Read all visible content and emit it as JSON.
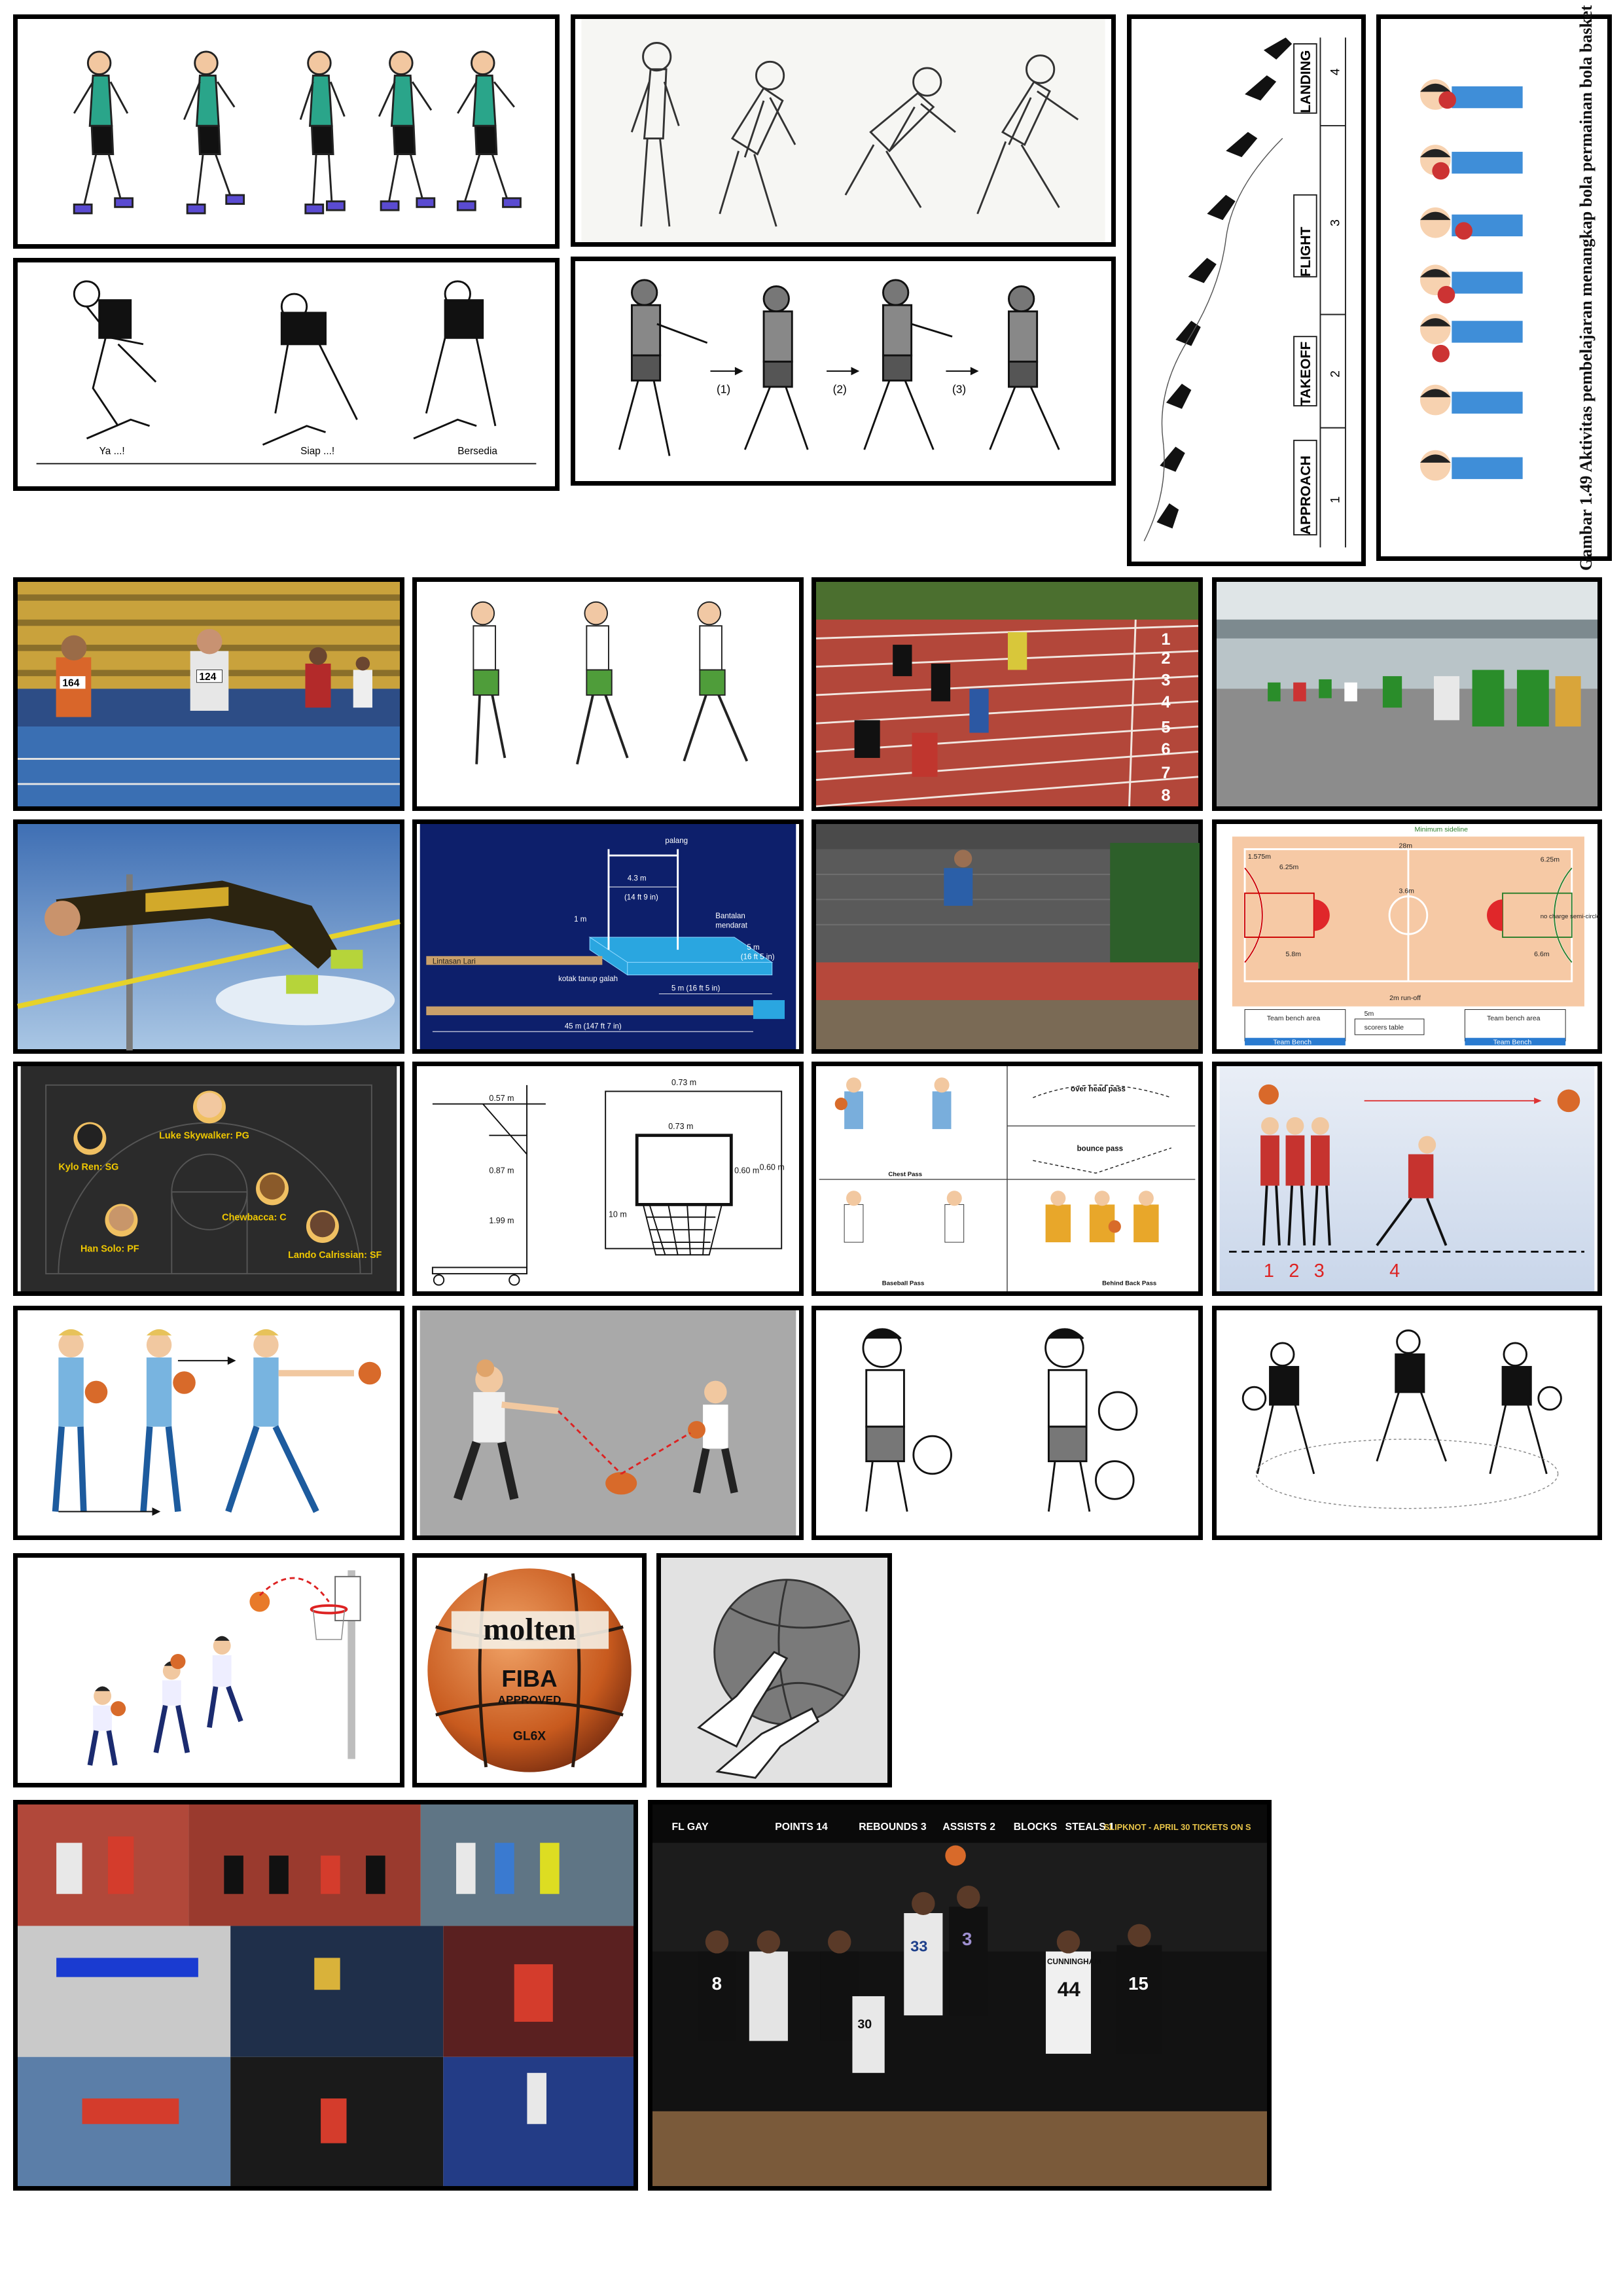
{
  "row1": {
    "jump_phases": {
      "approach": "APPROACH",
      "approach_num": "1",
      "takeoff": "TAKEOFF",
      "takeoff_num": "2",
      "flight": "FLIGHT",
      "flight_num": "3",
      "landing": "LANDING",
      "landing_num": "4"
    },
    "start_labels": {
      "ya": "Ya ...!",
      "siap": "Siap ...!",
      "bersedia": "Bersedia"
    },
    "relay_steps": {
      "s1": "(1)",
      "s2": "(2)",
      "s3": "(3)"
    },
    "figure_caption": "Gambar 1.49 Aktivitas pembelajaran menangkap bola permainan bola basket"
  },
  "row2": {
    "runner_bibs": {
      "a": "164",
      "b": "124"
    },
    "lanes": [
      "1",
      "2",
      "3",
      "4",
      "5",
      "6",
      "7",
      "8"
    ]
  },
  "row3": {
    "pit": {
      "palang": "palang",
      "span": "4.3 m",
      "span_ft": "(14 ft 9 in)",
      "height": "1 m",
      "bantalan": "Bantalan",
      "bantalan2": "mendarat",
      "length": "5 m",
      "length_ft": "(16 ft 5 in)",
      "width": "5 m (16 ft 5 in)",
      "lintasan": "Lintasan Lari",
      "kotak": "kotak tanup galah",
      "total": "45 m (147 ft 7 in)"
    },
    "court": {
      "length": "28m",
      "side_a": "6.25m",
      "side_b": "6.25m",
      "circle": "3.6m",
      "top": "1.575m",
      "midline": "Minimum sideline",
      "charge": "no charge semi-circle",
      "runoff": "2m run-off",
      "bench_a": "Team bench area",
      "bench_b": "Team bench area",
      "table": "scorers table",
      "bench_c": "Team Bench",
      "bench_d": "Team Bench",
      "bench_w": "5m",
      "dim_a": "5.8m",
      "dim_b": "6.6m"
    }
  },
  "row4": {
    "positions": [
      {
        "name": "Luke Skywalker: PG"
      },
      {
        "name": "Kylo Ren: SG"
      },
      {
        "name": "Chewbacca: C"
      },
      {
        "name": "Han Solo: PF"
      },
      {
        "name": "Lando Calrissian: SF"
      }
    ],
    "hoop_dims": {
      "a": "0.57 m",
      "b": "0.87 m",
      "c": "1.99 m",
      "d": "0.73 m",
      "e": "0.73 m",
      "f": "0.60 m",
      "g": "0.60 m",
      "h": "10 m"
    },
    "passes": {
      "over": "over head pass",
      "bounce": "bounce pass",
      "chest": "Chest Pass",
      "baseball": "Baseball Pass",
      "behind": "Behind Back Pass"
    },
    "shot_steps": [
      "1",
      "2",
      "3",
      "4"
    ]
  },
  "row6": {
    "ball_brand": "molten",
    "ball_fiba": "FIBA",
    "ball_approved": "APPROVED",
    "ball_model": "GL6X"
  },
  "row7": {
    "scoreboard": {
      "team": "FL GAY",
      "points": "POINTS 14",
      "rebounds": "REBOUNDS 3",
      "assists": "ASSISTS 2",
      "blocks": "BLOCKS",
      "steals": "STEALS 1",
      "ad": "SLIPKNOT - APRIL 30 TICKETS ON S"
    },
    "jerseys": {
      "a": "8",
      "b": "33",
      "c": "44",
      "d": "CUNNINGHAM",
      "e": "15",
      "f": "30",
      "g": "3"
    }
  },
  "colors": {
    "sky": "#4a7fbf",
    "track": "#b5503e",
    "court": "#f6c9a5",
    "pit_bg": "#0d1f6b",
    "court_dark": "#2b2b2b"
  }
}
